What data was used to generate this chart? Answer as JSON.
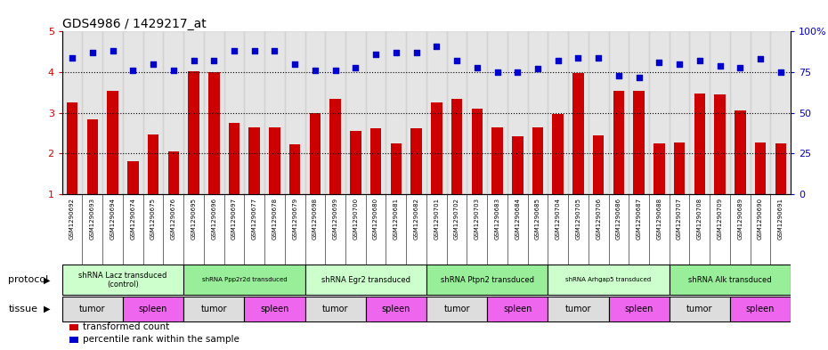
{
  "title": "GDS4986 / 1429217_at",
  "samples": [
    "GSM1290692",
    "GSM1290693",
    "GSM1290694",
    "GSM1290674",
    "GSM1290675",
    "GSM1290676",
    "GSM1290695",
    "GSM1290696",
    "GSM1290697",
    "GSM1290677",
    "GSM1290678",
    "GSM1290679",
    "GSM1290698",
    "GSM1290699",
    "GSM1290700",
    "GSM1290680",
    "GSM1290681",
    "GSM1290682",
    "GSM1290701",
    "GSM1290702",
    "GSM1290703",
    "GSM1290683",
    "GSM1290684",
    "GSM1290685",
    "GSM1290704",
    "GSM1290705",
    "GSM1290706",
    "GSM1290686",
    "GSM1290687",
    "GSM1290688",
    "GSM1290707",
    "GSM1290708",
    "GSM1290709",
    "GSM1290689",
    "GSM1290690",
    "GSM1290691"
  ],
  "bar_values": [
    3.25,
    2.85,
    3.55,
    1.82,
    2.47,
    2.05,
    4.02,
    4.0,
    2.75,
    2.65,
    2.65,
    2.22,
    3.0,
    3.35,
    2.55,
    2.62,
    2.25,
    2.62,
    3.25,
    3.35,
    3.1,
    2.65,
    2.42,
    2.65,
    2.98,
    3.98,
    2.45,
    3.55,
    3.55,
    2.25,
    2.28,
    3.48,
    3.45,
    3.05,
    2.28,
    2.25
  ],
  "percentile_values": [
    84,
    87,
    88,
    76,
    80,
    76,
    82,
    82,
    88,
    88,
    88,
    80,
    76,
    76,
    78,
    86,
    87,
    87,
    91,
    82,
    78,
    75,
    75,
    77,
    82,
    84,
    84,
    73,
    72,
    81,
    80,
    82,
    79,
    78,
    83,
    75
  ],
  "protocols": [
    {
      "label": "shRNA Lacz transduced\n(control)",
      "start": 0,
      "end": 6,
      "color": "#ccffcc"
    },
    {
      "label": "shRNA Ppp2r2d transduced",
      "start": 6,
      "end": 12,
      "color": "#99ee99"
    },
    {
      "label": "shRNA Egr2 transduced",
      "start": 12,
      "end": 18,
      "color": "#ccffcc"
    },
    {
      "label": "shRNA Ptpn2 transduced",
      "start": 18,
      "end": 24,
      "color": "#99ee99"
    },
    {
      "label": "shRNA Arhgap5 transduced",
      "start": 24,
      "end": 30,
      "color": "#ccffcc"
    },
    {
      "label": "shRNA Alk transduced",
      "start": 30,
      "end": 36,
      "color": "#99ee99"
    }
  ],
  "tissues": [
    {
      "label": "tumor",
      "start": 0,
      "end": 3,
      "color": "#dddddd"
    },
    {
      "label": "spleen",
      "start": 3,
      "end": 6,
      "color": "#ee66ee"
    },
    {
      "label": "tumor",
      "start": 6,
      "end": 9,
      "color": "#dddddd"
    },
    {
      "label": "spleen",
      "start": 9,
      "end": 12,
      "color": "#ee66ee"
    },
    {
      "label": "tumor",
      "start": 12,
      "end": 15,
      "color": "#dddddd"
    },
    {
      "label": "spleen",
      "start": 15,
      "end": 18,
      "color": "#ee66ee"
    },
    {
      "label": "tumor",
      "start": 18,
      "end": 21,
      "color": "#dddddd"
    },
    {
      "label": "spleen",
      "start": 21,
      "end": 24,
      "color": "#ee66ee"
    },
    {
      "label": "tumor",
      "start": 24,
      "end": 27,
      "color": "#dddddd"
    },
    {
      "label": "spleen",
      "start": 27,
      "end": 30,
      "color": "#ee66ee"
    },
    {
      "label": "tumor",
      "start": 30,
      "end": 33,
      "color": "#dddddd"
    },
    {
      "label": "spleen",
      "start": 33,
      "end": 36,
      "color": "#ee66ee"
    }
  ],
  "col_bg_color": "#cccccc",
  "ylim_left": [
    1,
    5
  ],
  "ylim_right": [
    0,
    100
  ],
  "bar_color": "#cc0000",
  "dot_color": "#0000cc",
  "bg_color": "#ffffff",
  "yticks_left": [
    1,
    2,
    3,
    4,
    5
  ],
  "yticks_right": [
    0,
    25,
    50,
    75,
    100
  ],
  "ytick_labels_right": [
    "0",
    "25",
    "50",
    "75",
    "100%"
  ],
  "protocol_label": "protocol",
  "tissue_label": "tissue",
  "legend_items": [
    {
      "color": "#cc0000",
      "label": "transformed count"
    },
    {
      "color": "#0000cc",
      "label": "percentile rank within the sample"
    }
  ]
}
